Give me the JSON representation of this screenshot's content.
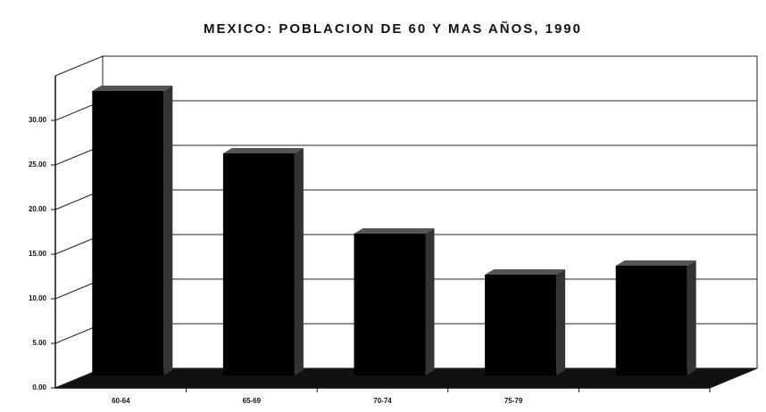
{
  "chart_data": {
    "type": "bar3d",
    "title": "MEXICO: POBLACION DE 60 Y MAS AÑOS, 1990",
    "categories": [
      "60-64",
      "65-69",
      "70-74",
      "75-79",
      null
    ],
    "values": [
      33.3,
      26.3,
      17.3,
      12.7,
      13.7
    ],
    "color": "#000000",
    "ylim": [
      0,
      35
    ],
    "yticks": [
      {
        "value": 0,
        "label": "0.00"
      },
      {
        "value": 5,
        "label": "5.00"
      },
      {
        "value": 10,
        "label": "10.00"
      },
      {
        "value": 15,
        "label": "15.00"
      },
      {
        "value": 20,
        "label": "20.00"
      },
      {
        "value": 25,
        "label": "25.00"
      },
      {
        "value": 30,
        "label": "30.00"
      }
    ],
    "grid": true
  }
}
